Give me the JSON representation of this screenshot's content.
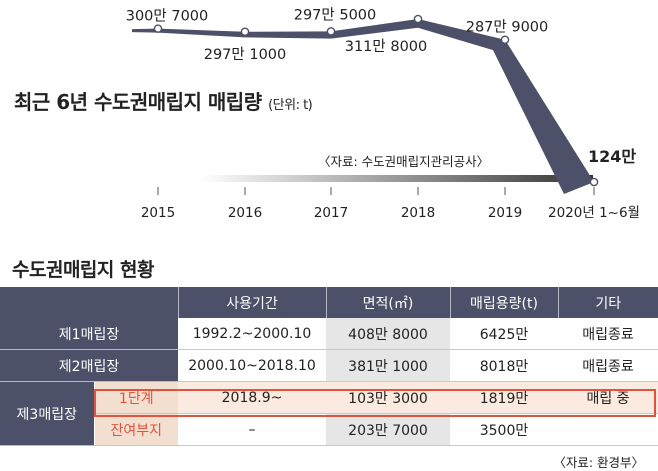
{
  "chart_data": {
    "type": "line",
    "title": "최근 6년 수도권매립지 매립량",
    "unit": "(단위: t)",
    "source": "〈자료: 수도권매립지관리공사〉",
    "categories": [
      "2015",
      "2016",
      "2017",
      "2018",
      "2019",
      "2020년 1~6월"
    ],
    "values": [
      3007000,
      2971000,
      2975000,
      3118000,
      2879000,
      1240000
    ],
    "labels": [
      "300만 7000",
      "297만 1000",
      "297만 5000",
      "311만 8000",
      "287만 9000",
      "124만"
    ],
    "colors": {
      "line": "#4c5068",
      "point": "#ffffff"
    }
  },
  "section_title": "수도권매립지 현황",
  "table": {
    "headers": [
      "",
      "사용기간",
      "면적(㎡)",
      "매립용량(t)",
      "기타"
    ],
    "rows": [
      {
        "name": "제1매립장",
        "period": "1992.2~2000.10",
        "area": "408만 8000",
        "capacity": "6425만",
        "note": "매립종료"
      },
      {
        "name": "제2매립장",
        "period": "2000.10~2018.10",
        "area": "381만 1000",
        "capacity": "8018만",
        "note": "매립종료"
      },
      {
        "name": "제3매립장",
        "sub": "1단계",
        "period": "2018.9~",
        "area": "103만 3000",
        "capacity": "1819만",
        "note": "매립 중"
      },
      {
        "sub": "잔여부지",
        "period": "–",
        "area": "203만 7000",
        "capacity": "3500만",
        "note": ""
      }
    ]
  },
  "table_source": "〈자료: 환경부〉",
  "colors": {
    "header": "#4c5068",
    "highlight": "#e0533e",
    "highlight_fill": "#fbeadf"
  }
}
